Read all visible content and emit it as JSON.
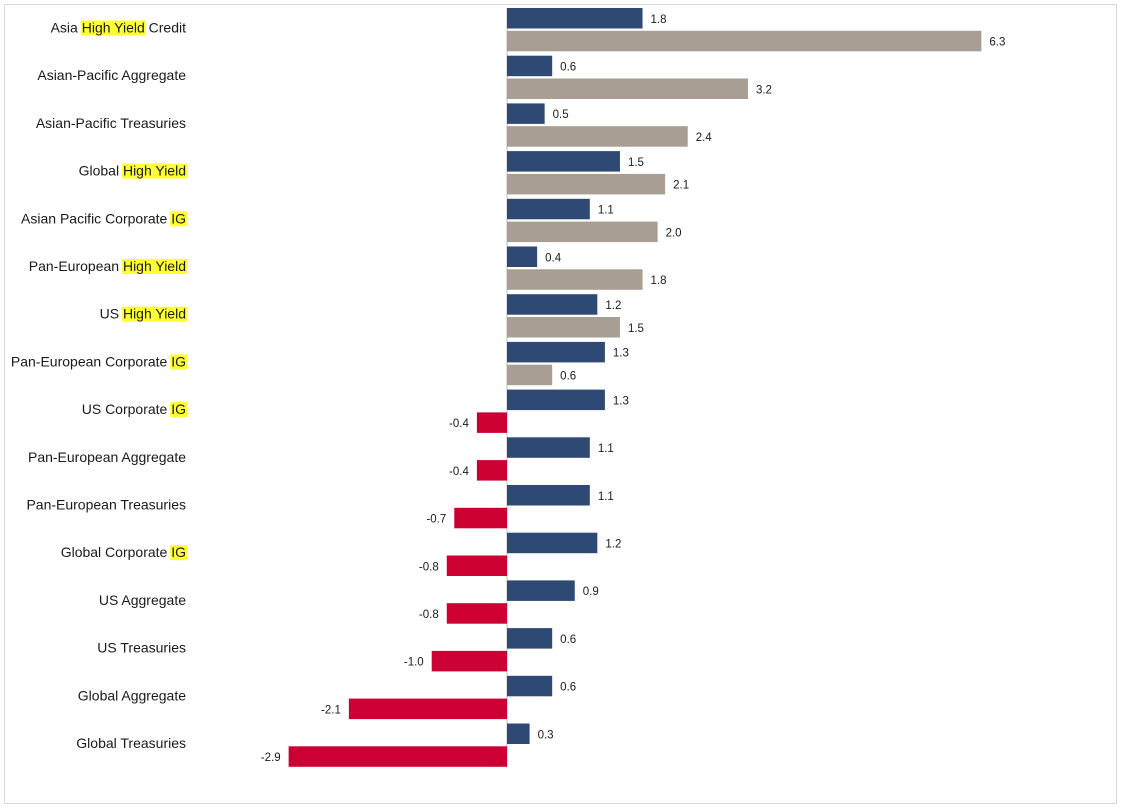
{
  "chart_data": {
    "type": "bar",
    "orientation": "horizontal",
    "categories": [
      {
        "text": "Asia High Yield Credit",
        "parts": [
          {
            "t": "Asia ",
            "hl": false
          },
          {
            "t": "High Yield",
            "hl": true
          },
          {
            "t": " Credit",
            "hl": false
          }
        ]
      },
      {
        "text": "Asian-Pacific Aggregate",
        "parts": [
          {
            "t": "Asian-Pacific Aggregate",
            "hl": false
          }
        ]
      },
      {
        "text": "Asian-Pacific Treasuries",
        "parts": [
          {
            "t": "Asian-Pacific Treasuries",
            "hl": false
          }
        ]
      },
      {
        "text": "Global High Yield",
        "parts": [
          {
            "t": "Global ",
            "hl": false
          },
          {
            "t": "High Yield",
            "hl": true
          }
        ]
      },
      {
        "text": "Asian Pacific Corporate IG",
        "parts": [
          {
            "t": "Asian Pacific Corporate ",
            "hl": false
          },
          {
            "t": "IG",
            "hl": true
          }
        ]
      },
      {
        "text": "Pan-European High Yield",
        "parts": [
          {
            "t": "Pan-European ",
            "hl": false
          },
          {
            "t": "High Yield",
            "hl": true
          }
        ]
      },
      {
        "text": "US High Yield",
        "parts": [
          {
            "t": "US ",
            "hl": false
          },
          {
            "t": "High Yield",
            "hl": true
          }
        ]
      },
      {
        "text": "Pan-European Corporate IG",
        "parts": [
          {
            "t": "Pan-European Corporate ",
            "hl": false
          },
          {
            "t": "IG",
            "hl": true
          }
        ]
      },
      {
        "text": "US Corporate IG",
        "parts": [
          {
            "t": "US Corporate ",
            "hl": false
          },
          {
            "t": "IG",
            "hl": true
          }
        ]
      },
      {
        "text": "Pan-European Aggregate",
        "parts": [
          {
            "t": "Pan-European Aggregate",
            "hl": false
          }
        ]
      },
      {
        "text": "Pan-European Treasuries",
        "parts": [
          {
            "t": "Pan-European Treasuries",
            "hl": false
          }
        ]
      },
      {
        "text": "Global Corporate IG",
        "parts": [
          {
            "t": "Global Corporate ",
            "hl": false
          },
          {
            "t": "IG",
            "hl": true
          }
        ]
      },
      {
        "text": "US Aggregate",
        "parts": [
          {
            "t": "US Aggregate",
            "hl": false
          }
        ]
      },
      {
        "text": "US Treasuries",
        "parts": [
          {
            "t": "US Treasuries",
            "hl": false
          }
        ]
      },
      {
        "text": "Global Aggregate",
        "parts": [
          {
            "t": "Global Aggregate",
            "hl": false
          }
        ]
      },
      {
        "text": "Global Treasuries",
        "parts": [
          {
            "t": "Global Treasuries",
            "hl": false
          }
        ]
      }
    ],
    "series": [
      {
        "values": [
          1.8,
          0.6,
          0.5,
          1.5,
          1.1,
          0.4,
          1.2,
          1.3,
          1.3,
          1.1,
          1.1,
          1.2,
          0.9,
          0.6,
          0.6,
          0.3
        ],
        "labels": [
          "1.8",
          "0.6",
          "0.5",
          "1.5",
          "1.1",
          "0.4",
          "1.2",
          "1.3",
          "1.3",
          "1.1",
          "1.1",
          "1.2",
          "0.9",
          "0.6",
          "0.6",
          "0.3"
        ],
        "color": "#2e4a74"
      },
      {
        "values": [
          6.3,
          3.2,
          2.4,
          2.1,
          2.0,
          1.8,
          1.5,
          0.6,
          -0.4,
          -0.4,
          -0.7,
          -0.8,
          -0.8,
          -1.0,
          -2.1,
          -2.9
        ],
        "labels": [
          "6.3",
          "3.2",
          "2.4",
          "2.1",
          "2.0",
          "1.8",
          "1.5",
          "0.6",
          "-0.4",
          "-0.4",
          "-0.7",
          "-0.8",
          "-0.8",
          "-1.0",
          "-2.1",
          "-2.9"
        ],
        "color": "#a89e93",
        "negative_color": "#cc0033"
      }
    ],
    "xlim": [
      -2.9,
      6.3
    ],
    "highlight_color": "#ffff33",
    "grid": false,
    "legend": "none",
    "title": "",
    "xlabel": "",
    "ylabel": ""
  }
}
